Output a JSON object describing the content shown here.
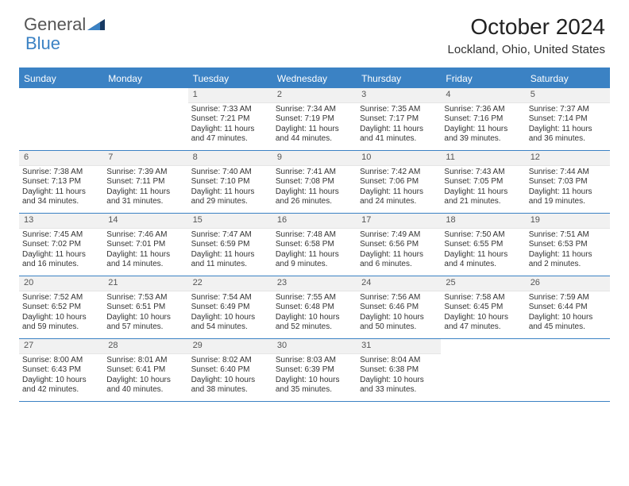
{
  "brand": {
    "part1": "General",
    "part2": "Blue"
  },
  "title": "October 2024",
  "location": "Lockland, Ohio, United States",
  "colors": {
    "accent": "#3b82c4",
    "header_bg": "#3b82c4",
    "header_text": "#ffffff",
    "daynum_bg": "#f1f1f1",
    "text": "#333333",
    "background": "#ffffff"
  },
  "day_names": [
    "Sunday",
    "Monday",
    "Tuesday",
    "Wednesday",
    "Thursday",
    "Friday",
    "Saturday"
  ],
  "first_weekday": 2,
  "days": [
    {
      "n": 1,
      "sr": "7:33 AM",
      "ss": "7:21 PM",
      "dl": "11 hours and 47 minutes."
    },
    {
      "n": 2,
      "sr": "7:34 AM",
      "ss": "7:19 PM",
      "dl": "11 hours and 44 minutes."
    },
    {
      "n": 3,
      "sr": "7:35 AM",
      "ss": "7:17 PM",
      "dl": "11 hours and 41 minutes."
    },
    {
      "n": 4,
      "sr": "7:36 AM",
      "ss": "7:16 PM",
      "dl": "11 hours and 39 minutes."
    },
    {
      "n": 5,
      "sr": "7:37 AM",
      "ss": "7:14 PM",
      "dl": "11 hours and 36 minutes."
    },
    {
      "n": 6,
      "sr": "7:38 AM",
      "ss": "7:13 PM",
      "dl": "11 hours and 34 minutes."
    },
    {
      "n": 7,
      "sr": "7:39 AM",
      "ss": "7:11 PM",
      "dl": "11 hours and 31 minutes."
    },
    {
      "n": 8,
      "sr": "7:40 AM",
      "ss": "7:10 PM",
      "dl": "11 hours and 29 minutes."
    },
    {
      "n": 9,
      "sr": "7:41 AM",
      "ss": "7:08 PM",
      "dl": "11 hours and 26 minutes."
    },
    {
      "n": 10,
      "sr": "7:42 AM",
      "ss": "7:06 PM",
      "dl": "11 hours and 24 minutes."
    },
    {
      "n": 11,
      "sr": "7:43 AM",
      "ss": "7:05 PM",
      "dl": "11 hours and 21 minutes."
    },
    {
      "n": 12,
      "sr": "7:44 AM",
      "ss": "7:03 PM",
      "dl": "11 hours and 19 minutes."
    },
    {
      "n": 13,
      "sr": "7:45 AM",
      "ss": "7:02 PM",
      "dl": "11 hours and 16 minutes."
    },
    {
      "n": 14,
      "sr": "7:46 AM",
      "ss": "7:01 PM",
      "dl": "11 hours and 14 minutes."
    },
    {
      "n": 15,
      "sr": "7:47 AM",
      "ss": "6:59 PM",
      "dl": "11 hours and 11 minutes."
    },
    {
      "n": 16,
      "sr": "7:48 AM",
      "ss": "6:58 PM",
      "dl": "11 hours and 9 minutes."
    },
    {
      "n": 17,
      "sr": "7:49 AM",
      "ss": "6:56 PM",
      "dl": "11 hours and 6 minutes."
    },
    {
      "n": 18,
      "sr": "7:50 AM",
      "ss": "6:55 PM",
      "dl": "11 hours and 4 minutes."
    },
    {
      "n": 19,
      "sr": "7:51 AM",
      "ss": "6:53 PM",
      "dl": "11 hours and 2 minutes."
    },
    {
      "n": 20,
      "sr": "7:52 AM",
      "ss": "6:52 PM",
      "dl": "10 hours and 59 minutes."
    },
    {
      "n": 21,
      "sr": "7:53 AM",
      "ss": "6:51 PM",
      "dl": "10 hours and 57 minutes."
    },
    {
      "n": 22,
      "sr": "7:54 AM",
      "ss": "6:49 PM",
      "dl": "10 hours and 54 minutes."
    },
    {
      "n": 23,
      "sr": "7:55 AM",
      "ss": "6:48 PM",
      "dl": "10 hours and 52 minutes."
    },
    {
      "n": 24,
      "sr": "7:56 AM",
      "ss": "6:46 PM",
      "dl": "10 hours and 50 minutes."
    },
    {
      "n": 25,
      "sr": "7:58 AM",
      "ss": "6:45 PM",
      "dl": "10 hours and 47 minutes."
    },
    {
      "n": 26,
      "sr": "7:59 AM",
      "ss": "6:44 PM",
      "dl": "10 hours and 45 minutes."
    },
    {
      "n": 27,
      "sr": "8:00 AM",
      "ss": "6:43 PM",
      "dl": "10 hours and 42 minutes."
    },
    {
      "n": 28,
      "sr": "8:01 AM",
      "ss": "6:41 PM",
      "dl": "10 hours and 40 minutes."
    },
    {
      "n": 29,
      "sr": "8:02 AM",
      "ss": "6:40 PM",
      "dl": "10 hours and 38 minutes."
    },
    {
      "n": 30,
      "sr": "8:03 AM",
      "ss": "6:39 PM",
      "dl": "10 hours and 35 minutes."
    },
    {
      "n": 31,
      "sr": "8:04 AM",
      "ss": "6:38 PM",
      "dl": "10 hours and 33 minutes."
    }
  ],
  "labels": {
    "sunrise": "Sunrise:",
    "sunset": "Sunset:",
    "daylight": "Daylight:"
  }
}
